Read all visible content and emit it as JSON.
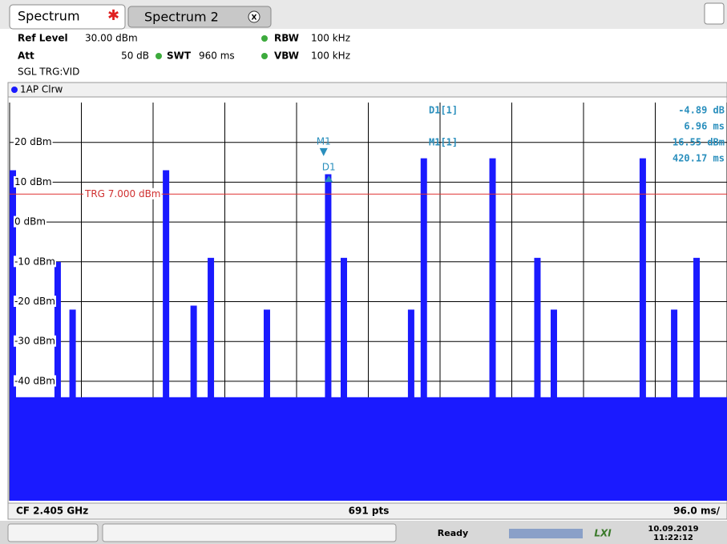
{
  "tabs": [
    "Spectrum",
    "Spectrum 2"
  ],
  "settings": {
    "ref_level_label": "Ref Level",
    "ref_level": "30.00 dBm",
    "att_label": "Att",
    "att": "50 dB",
    "swt_label": "SWT",
    "swt": "960 ms",
    "rbw_label": "RBW",
    "rbw": "100 kHz",
    "vbw_label": "VBW",
    "vbw": "100 kHz",
    "trigger": "SGL TRG:VID"
  },
  "trace_label": "1AP Clrw",
  "chart_data": {
    "type": "spectrum",
    "color": "#1a1aff",
    "xlim": [
      0,
      960
    ],
    "xticks": [
      0,
      96,
      192,
      288,
      384,
      480,
      576,
      672,
      768,
      864,
      960
    ],
    "ylim": [
      -70,
      30
    ],
    "yticks": [
      {
        "value": 20,
        "label": "20 dBm"
      },
      {
        "value": 10,
        "label": "10 dBm"
      },
      {
        "value": 0,
        "label": "0 dBm"
      },
      {
        "value": -10,
        "label": "-10 dBm"
      },
      {
        "value": -20,
        "label": "-20 dBm"
      },
      {
        "value": -30,
        "label": "-30 dBm"
      },
      {
        "value": -40,
        "label": "-40 dBm"
      }
    ],
    "grid": true,
    "noise_floor": -44,
    "x": [
      0,
      60,
      80,
      205,
      242,
      265,
      340,
      422,
      443,
      533,
      550,
      642,
      702,
      724,
      843,
      885,
      915
    ],
    "values": [
      13,
      -10,
      -22,
      13,
      -21,
      -9,
      -22,
      12,
      -9,
      -22,
      16,
      16,
      -9,
      -22,
      16,
      -22,
      -9
    ],
    "trigger": {
      "value": 7,
      "label": "TRG 7.000 dBm"
    },
    "markers": [
      {
        "label": "M1",
        "readout": "M1[1]",
        "level": {
          "value": 16.55,
          "label": "16.55 dBm"
        },
        "time": {
          "value": 420.17,
          "label": "420.17 ms"
        }
      },
      {
        "label": "D1",
        "readout": "D1[1]",
        "level": {
          "value": -4.89,
          "label": "-4.89 dB"
        },
        "time": {
          "value": 6.96,
          "label": "6.96 ms"
        }
      }
    ]
  },
  "footer": {
    "center_frequency": "CF 2.405 GHz",
    "points": "691 pts",
    "time_div": "96.0 ms/"
  },
  "status": {
    "state": "Ready",
    "date": "10.09.2019",
    "time": "11:22:12"
  }
}
